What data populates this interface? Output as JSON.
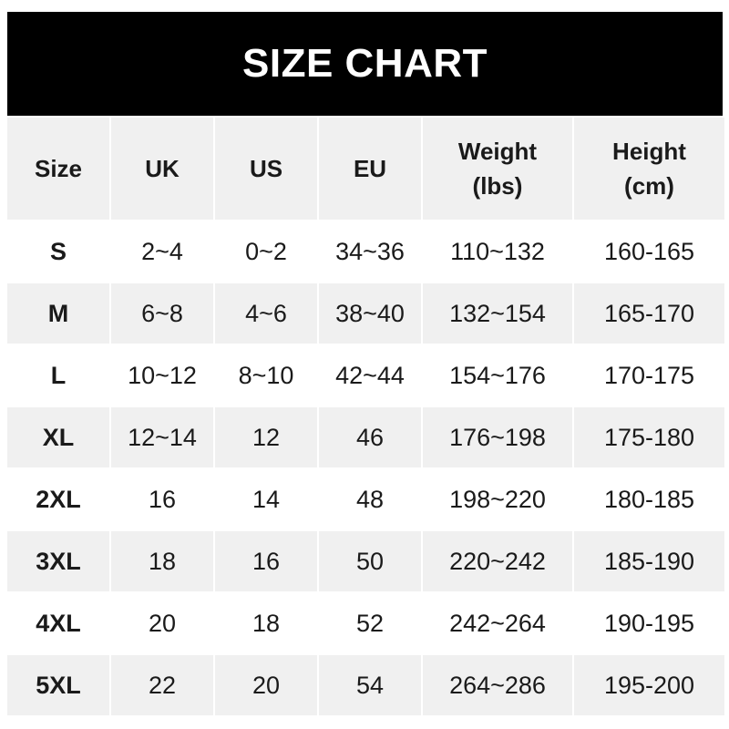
{
  "title": "SIZE CHART",
  "columns": [
    "Size",
    "UK",
    "US",
    "EU",
    "Weight\n(lbs)",
    "Height\n(cm)"
  ],
  "column_lines": [
    [
      "Size"
    ],
    [
      "UK"
    ],
    [
      "US"
    ],
    [
      "EU"
    ],
    [
      "Weight",
      "(lbs)"
    ],
    [
      "Height",
      "(cm)"
    ]
  ],
  "rows": [
    [
      "S",
      "2~4",
      "0~2",
      "34~36",
      "110~132",
      "160-165"
    ],
    [
      "M",
      "6~8",
      "4~6",
      "38~40",
      "132~154",
      "165-170"
    ],
    [
      "L",
      "10~12",
      "8~10",
      "42~44",
      "154~176",
      "170-175"
    ],
    [
      "XL",
      "12~14",
      "12",
      "46",
      "176~198",
      "175-180"
    ],
    [
      "2XL",
      "16",
      "14",
      "48",
      "198~220",
      "180-185"
    ],
    [
      "3XL",
      "18",
      "16",
      "50",
      "220~242",
      "185-190"
    ],
    [
      "4XL",
      "20",
      "18",
      "52",
      "242~264",
      "190-195"
    ],
    [
      "5XL",
      "22",
      "20",
      "54",
      "264~286",
      "195-200"
    ]
  ],
  "colors": {
    "header_bg": "#000000",
    "header_text": "#ffffff",
    "stripe": "#f0f0f0",
    "text": "#1a1a1a"
  }
}
